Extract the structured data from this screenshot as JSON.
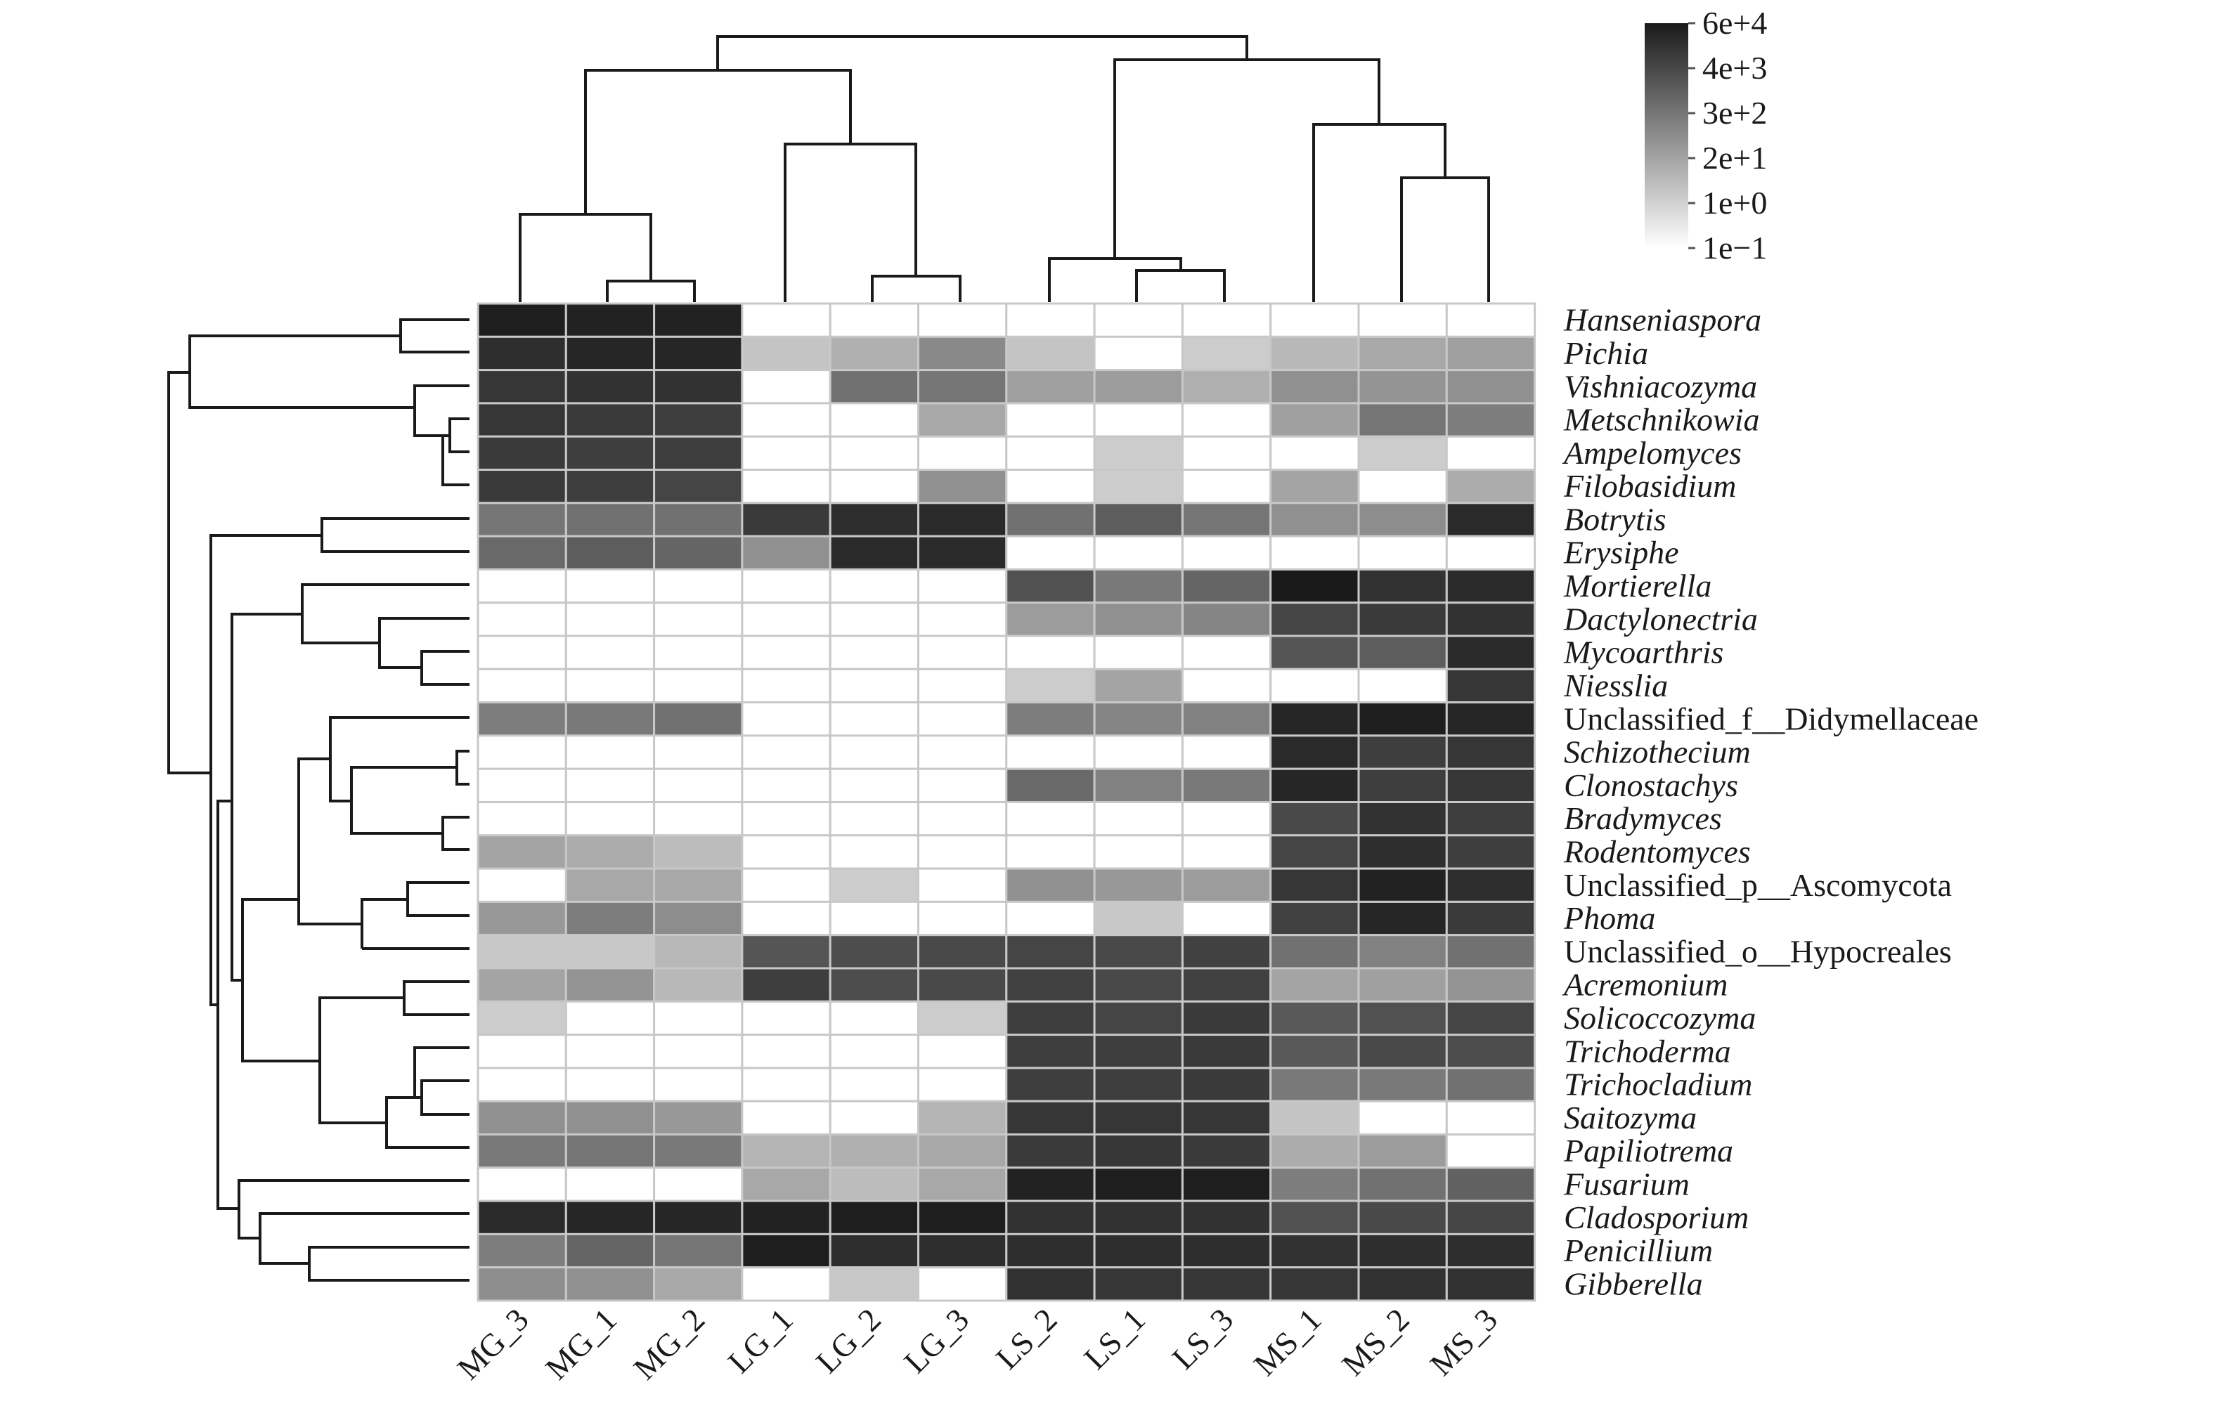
{
  "chart_data": {
    "type": "heatmap",
    "columns": [
      "MG_3",
      "MG_1",
      "MG_2",
      "LG_1",
      "LG_2",
      "LG_3",
      "LS_2",
      "LS_1",
      "LS_3",
      "MS_1",
      "MS_2",
      "MS_3"
    ],
    "rows": [
      {
        "label": "Hanseniaspora",
        "italic": true
      },
      {
        "label": "Pichia",
        "italic": true
      },
      {
        "label": "Vishniacozyma",
        "italic": true
      },
      {
        "label": "Metschnikowia",
        "italic": true
      },
      {
        "label": "Ampelomyces",
        "italic": true
      },
      {
        "label": "Filobasidium",
        "italic": true
      },
      {
        "label": "Botrytis",
        "italic": true
      },
      {
        "label": "Erysiphe",
        "italic": true
      },
      {
        "label": "Mortierella",
        "italic": true
      },
      {
        "label": "Dactylonectria",
        "italic": true
      },
      {
        "label": "Mycoarthris",
        "italic": true
      },
      {
        "label": "Niesslia",
        "italic": true
      },
      {
        "label": "Unclassified_f__Didymellaceae",
        "italic": false
      },
      {
        "label": "Schizothecium",
        "italic": true
      },
      {
        "label": "Clonostachys",
        "italic": true
      },
      {
        "label": "Bradymyces",
        "italic": true
      },
      {
        "label": "Rodentomyces",
        "italic": true
      },
      {
        "label": "Unclassified_p__Ascomycota",
        "italic": false
      },
      {
        "label": "Phoma",
        "italic": true
      },
      {
        "label": "Unclassified_o__Hypocreales",
        "italic": false
      },
      {
        "label": "Acremonium",
        "italic": true
      },
      {
        "label": "Solicoccozyma",
        "italic": true
      },
      {
        "label": "Trichoderma",
        "italic": true
      },
      {
        "label": "Trichocladium",
        "italic": true
      },
      {
        "label": "Saitozyma",
        "italic": true
      },
      {
        "label": "Papiliotrema",
        "italic": true
      },
      {
        "label": "Fusarium",
        "italic": true
      },
      {
        "label": "Cladosporium",
        "italic": true
      },
      {
        "label": "Penicillium",
        "italic": true
      },
      {
        "label": "Gibberella",
        "italic": true
      }
    ],
    "color_scale": {
      "scale": "log10",
      "ticks": [
        "6e+4",
        "4e+3",
        "3e+2",
        "2e+1",
        "1e+0",
        "1e−1"
      ],
      "colors_high_to_low": [
        "#1a1a1a",
        "#ffffff"
      ]
    },
    "values_log10": [
      [
        4.7,
        4.6,
        4.6,
        -1,
        -1,
        -1,
        -1,
        -1,
        -1,
        -1,
        -1,
        -1
      ],
      [
        4.3,
        4.5,
        4.5,
        0.5,
        1.0,
        2.0,
        0.5,
        -1,
        0.3,
        0.8,
        1.2,
        1.4
      ],
      [
        4.1,
        4.2,
        4.2,
        -1,
        2.6,
        2.5,
        1.4,
        1.5,
        1.0,
        1.8,
        1.7,
        1.8
      ],
      [
        4.1,
        4.0,
        3.9,
        -1,
        -1,
        1.2,
        -1,
        -1,
        -1,
        1.4,
        2.5,
        2.3
      ],
      [
        4.0,
        3.9,
        3.9,
        -1,
        -1,
        -1,
        -1,
        0.3,
        -1,
        -1,
        0.3,
        -1
      ],
      [
        4.0,
        3.9,
        3.7,
        -1,
        -1,
        1.8,
        -1,
        0.3,
        -1,
        1.3,
        -1,
        1.1
      ],
      [
        2.5,
        2.6,
        2.6,
        4.0,
        4.3,
        4.4,
        2.6,
        3.1,
        2.5,
        1.8,
        1.9,
        4.4
      ],
      [
        2.8,
        3.1,
        2.9,
        1.8,
        4.4,
        4.4,
        -1,
        -1,
        -1,
        -1,
        -1,
        -1
      ],
      [
        -1,
        -1,
        -1,
        -1,
        -1,
        -1,
        3.4,
        2.4,
        2.9,
        4.8,
        4.2,
        4.4
      ],
      [
        -1,
        -1,
        -1,
        -1,
        -1,
        -1,
        1.5,
        1.8,
        2.1,
        3.7,
        4.0,
        4.2
      ],
      [
        -1,
        -1,
        -1,
        -1,
        -1,
        -1,
        -1,
        -1,
        -1,
        3.3,
        3.1,
        4.4
      ],
      [
        -1,
        -1,
        -1,
        -1,
        -1,
        -1,
        0.3,
        1.3,
        -1,
        -1,
        -1,
        4.1
      ],
      [
        2.3,
        2.4,
        2.6,
        -1,
        -1,
        -1,
        2.3,
        2.1,
        2.2,
        4.5,
        4.7,
        4.5
      ],
      [
        -1,
        -1,
        -1,
        -1,
        -1,
        -1,
        -1,
        -1,
        -1,
        4.4,
        3.9,
        4.1
      ],
      [
        -1,
        -1,
        -1,
        -1,
        -1,
        -1,
        2.8,
        2.2,
        2.4,
        4.5,
        3.9,
        4.1
      ],
      [
        -1,
        -1,
        -1,
        -1,
        -1,
        -1,
        -1,
        -1,
        -1,
        3.6,
        4.2,
        3.9
      ],
      [
        1.3,
        1.1,
        0.7,
        -1,
        -1,
        -1,
        -1,
        -1,
        -1,
        3.7,
        4.3,
        3.9
      ],
      [
        -1,
        1.2,
        1.2,
        -1,
        0.3,
        -1,
        1.8,
        1.6,
        1.5,
        4.1,
        4.6,
        4.3
      ],
      [
        1.6,
        2.3,
        1.9,
        -1,
        -1,
        -1,
        -1,
        0.4,
        -1,
        3.8,
        4.5,
        4.0
      ],
      [
        0.4,
        0.4,
        0.8,
        3.3,
        3.5,
        3.6,
        3.7,
        3.6,
        3.8,
        2.6,
        2.2,
        2.6
      ],
      [
        1.3,
        1.7,
        0.8,
        3.9,
        3.5,
        3.6,
        3.8,
        3.6,
        3.8,
        1.3,
        1.4,
        1.7
      ],
      [
        0.3,
        -1,
        -1,
        -1,
        -1,
        0.3,
        3.9,
        3.7,
        4.0,
        3.2,
        3.4,
        3.7
      ],
      [
        -1,
        -1,
        -1,
        -1,
        -1,
        -1,
        3.9,
        3.9,
        4.0,
        3.2,
        3.6,
        3.5
      ],
      [
        -1,
        -1,
        -1,
        -1,
        -1,
        -1,
        3.9,
        3.9,
        4.0,
        2.4,
        2.4,
        2.6
      ],
      [
        1.8,
        1.8,
        1.6,
        -1,
        -1,
        0.9,
        4.1,
        4.1,
        4.1,
        0.5,
        -1,
        -1
      ],
      [
        2.4,
        2.5,
        2.4,
        0.9,
        1.0,
        1.2,
        4.0,
        4.1,
        4.0,
        1.1,
        1.5,
        -1
      ],
      [
        -1,
        -1,
        -1,
        1.2,
        0.7,
        1.2,
        4.6,
        4.7,
        4.7,
        2.3,
        2.6,
        3.0
      ],
      [
        4.4,
        4.5,
        4.5,
        4.6,
        4.7,
        4.7,
        4.2,
        4.2,
        4.2,
        3.4,
        3.6,
        3.7
      ],
      [
        2.3,
        2.9,
        2.5,
        4.7,
        4.3,
        4.3,
        4.3,
        4.3,
        4.3,
        4.2,
        4.3,
        4.3
      ],
      [
        1.9,
        1.8,
        1.2,
        -1,
        0.4,
        -1,
        4.2,
        4.1,
        4.1,
        4.1,
        4.2,
        4.2
      ]
    ]
  }
}
